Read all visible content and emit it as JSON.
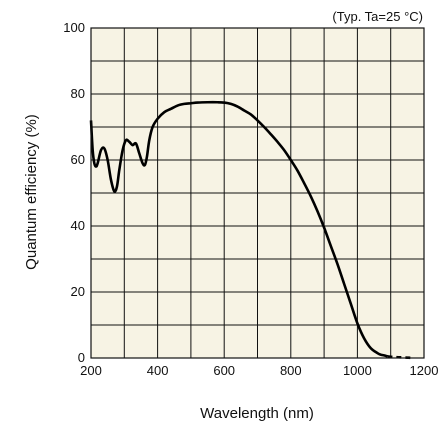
{
  "chart_data": {
    "type": "line",
    "title": "",
    "annotation": "(Typ. Ta=25 °C)",
    "xlabel": "Wavelength (nm)",
    "ylabel": "Quantum efficiency (%)",
    "xlim": [
      200,
      1200
    ],
    "ylim": [
      0,
      100
    ],
    "xticks": [
      200,
      400,
      600,
      800,
      1000,
      1200
    ],
    "yticks": [
      0,
      20,
      40,
      60,
      80,
      100
    ],
    "x_gridlines": [
      200,
      300,
      400,
      500,
      600,
      700,
      800,
      900,
      1000,
      1100,
      1200
    ],
    "y_gridlines": [
      0,
      10,
      20,
      30,
      40,
      50,
      60,
      70,
      80,
      90,
      100
    ],
    "grid": true,
    "plot_background": "#f7f3e4",
    "grid_color": "#111111",
    "line_color": "#000000",
    "series": [
      {
        "style": "solid",
        "x": [
          200,
          205,
          210,
          215,
          220,
          230,
          240,
          250,
          260,
          270,
          278,
          285,
          295,
          305,
          315,
          325,
          335,
          345,
          355,
          362,
          368,
          375,
          385,
          400,
          420,
          440,
          460,
          480,
          500,
          520,
          550,
          580,
          600,
          620,
          640,
          660,
          680,
          700,
          720,
          740,
          760,
          780,
          800,
          820,
          840,
          860,
          880,
          900,
          920,
          940,
          960,
          980,
          1000,
          1020,
          1040,
          1060,
          1070,
          1080,
          1090
        ],
        "y": [
          72,
          63,
          59,
          58,
          59,
          63,
          63.5,
          60,
          54,
          50.5,
          52,
          57,
          63,
          66,
          65.5,
          64.5,
          65,
          62,
          59,
          58.5,
          61,
          66,
          70,
          72.5,
          74.5,
          75.5,
          76.5,
          77,
          77.2,
          77.4,
          77.5,
          77.5,
          77.4,
          77,
          76.2,
          75,
          73.8,
          72,
          70,
          67.8,
          65.5,
          63,
          60,
          56.8,
          53,
          49,
          44.5,
          39.5,
          34,
          28.5,
          22.5,
          16.5,
          10.5,
          6,
          3,
          1.5,
          1,
          0.8,
          0.5
        ]
      },
      {
        "style": "dashed",
        "x": [
          1090,
          1110,
          1130,
          1150,
          1165
        ],
        "y": [
          0.5,
          0.3,
          0.2,
          0.1,
          0
        ]
      }
    ]
  }
}
